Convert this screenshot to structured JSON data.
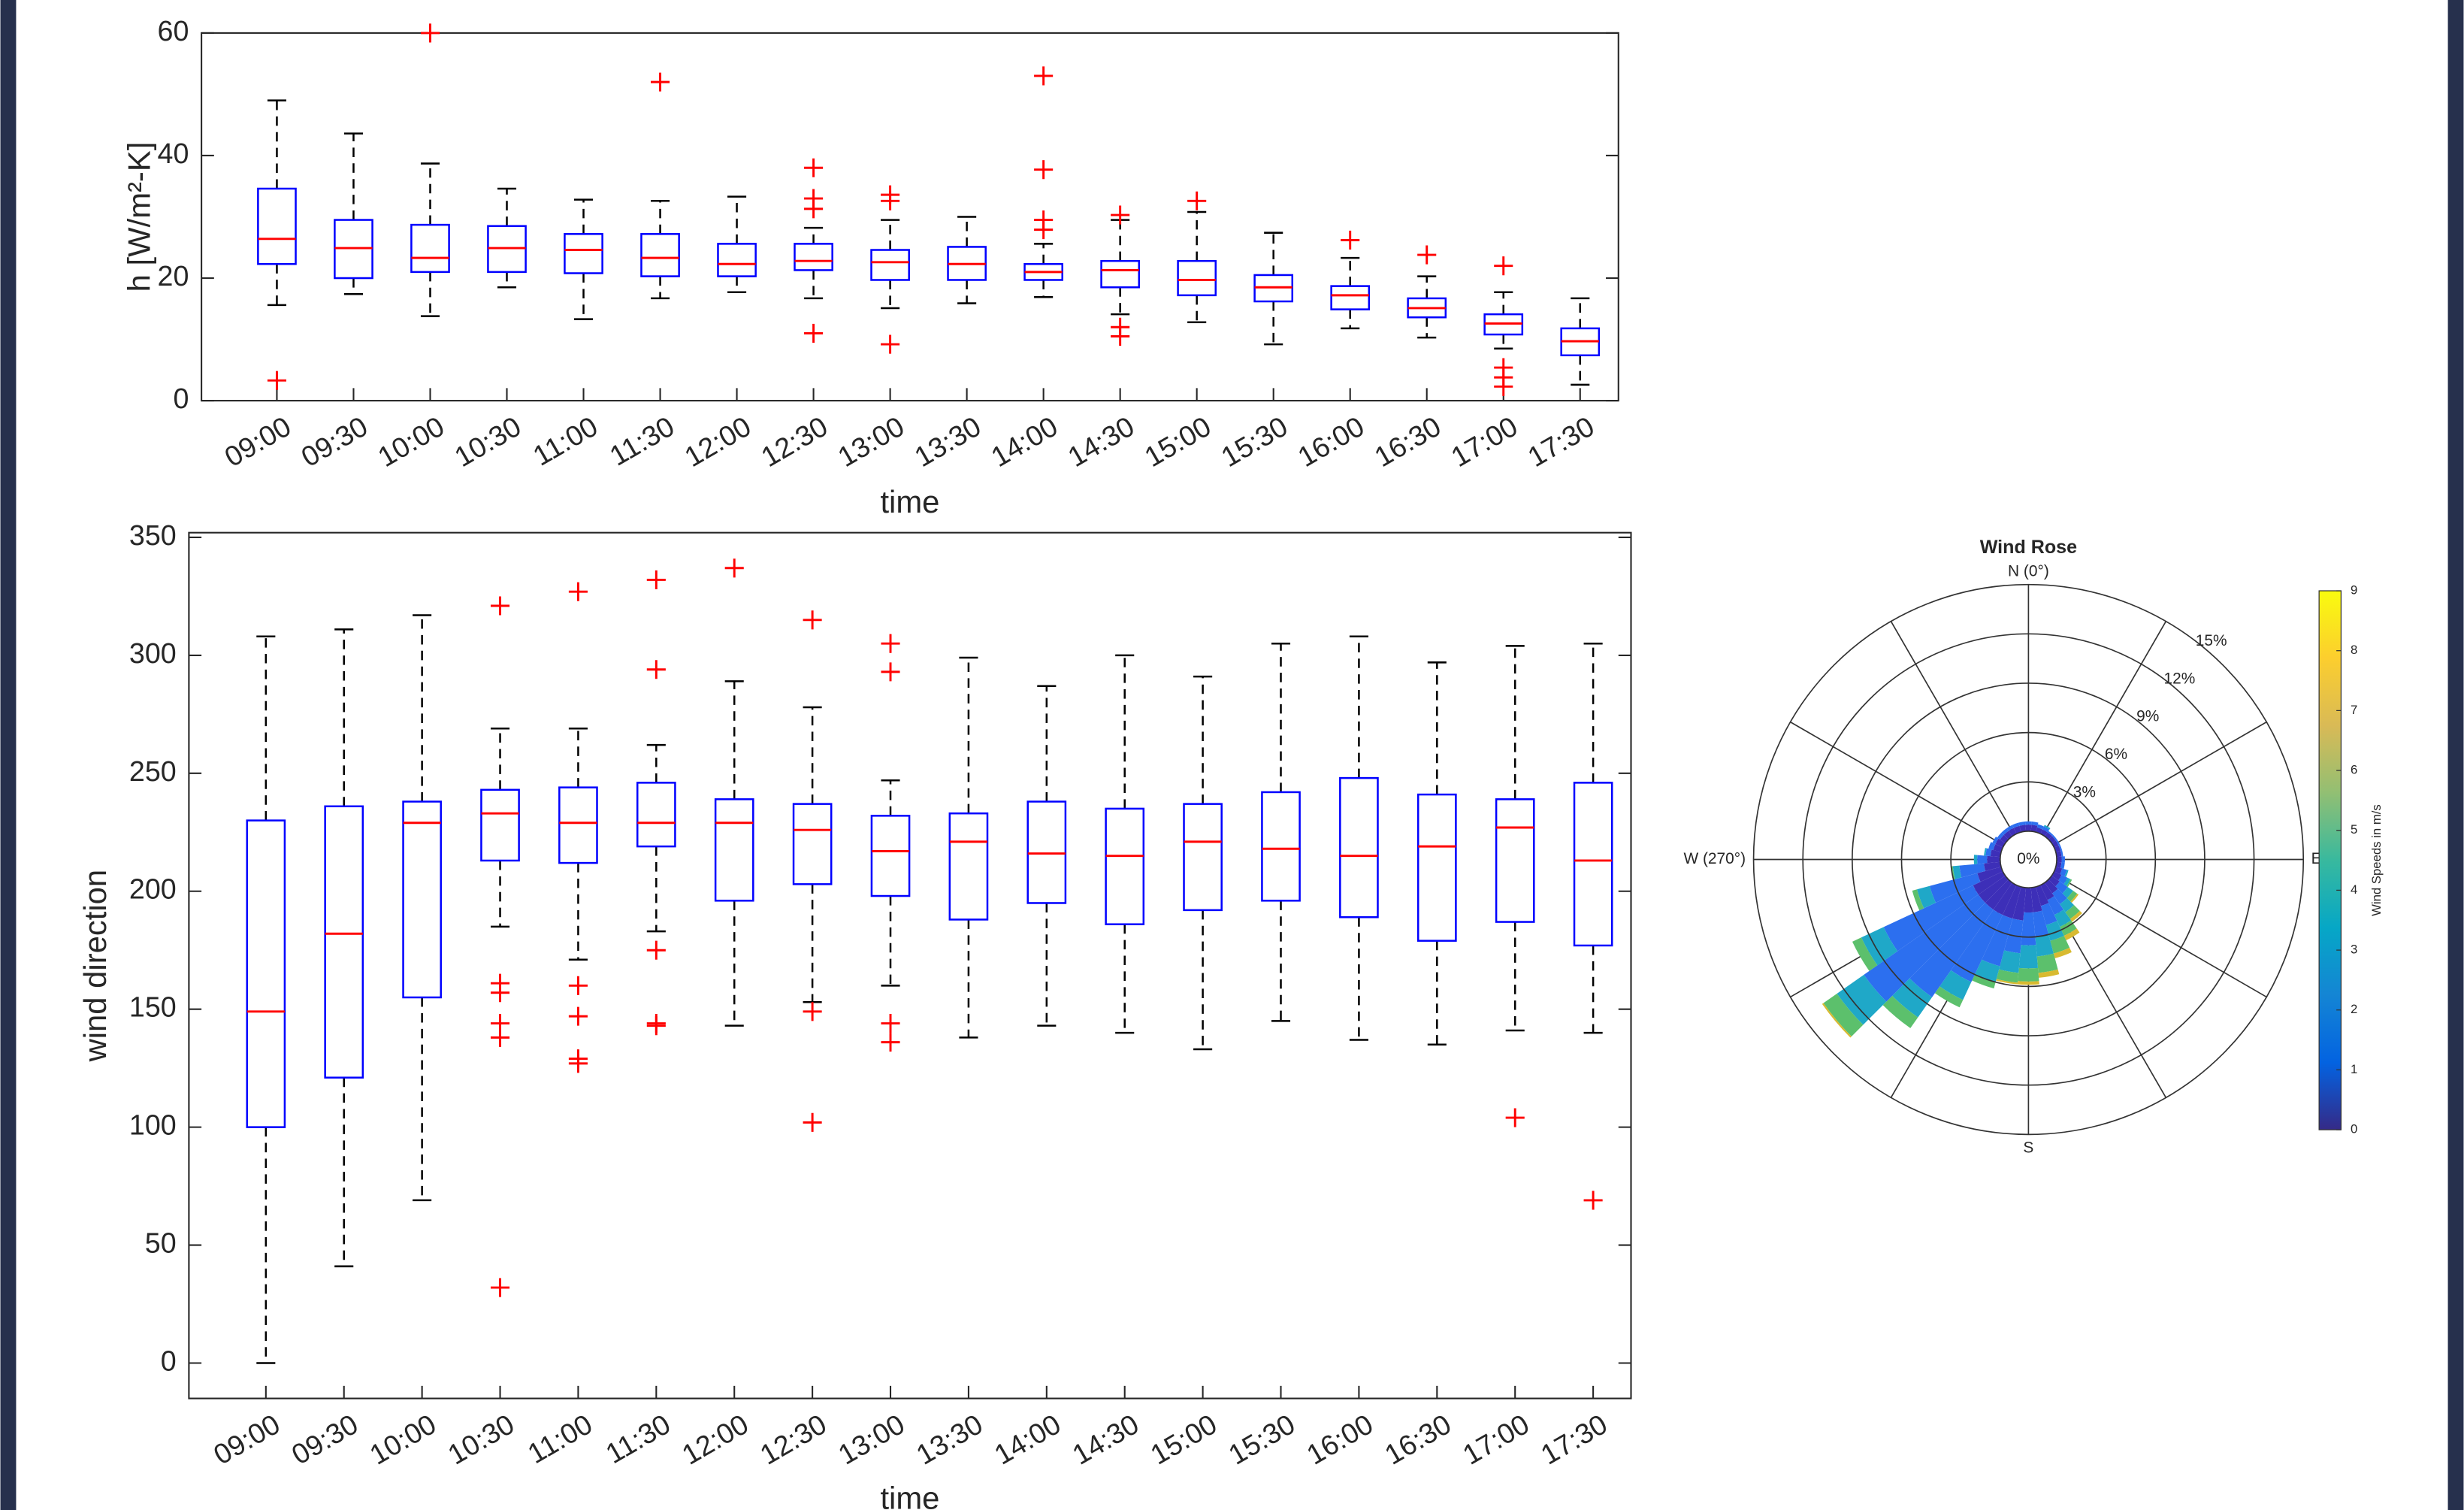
{
  "chart_data": [
    {
      "type": "box",
      "ylabel": "h [W/m²-K]",
      "xlabel": "time",
      "categories": [
        "09:00",
        "09:30",
        "10:00",
        "10:30",
        "11:00",
        "11:30",
        "12:00",
        "12:30",
        "13:00",
        "13:30",
        "14:00",
        "14:30",
        "15:00",
        "15:30",
        "16:00",
        "16:30",
        "17:00",
        "17:30"
      ],
      "ylim": [
        0,
        60
      ],
      "yticks": [
        0,
        20,
        40,
        60
      ],
      "box_color": "#0000ff",
      "median_color": "#ff0000",
      "whisker_color": "#000000",
      "outlier_color": "#ff0000",
      "boxes": [
        {
          "low": 15.6,
          "q1": 22.3,
          "median": 26.4,
          "q3": 34.6,
          "high": 49,
          "outliers": [
            3.3
          ]
        },
        {
          "low": 17.4,
          "q1": 20,
          "median": 24.9,
          "q3": 29.5,
          "high": 43.6,
          "outliers": []
        },
        {
          "low": 13.8,
          "q1": 21,
          "median": 23.3,
          "q3": 28.7,
          "high": 38.7,
          "outliers": [
            60
          ]
        },
        {
          "low": 18.5,
          "q1": 21,
          "median": 24.9,
          "q3": 28.5,
          "high": 34.6,
          "outliers": []
        },
        {
          "low": 13.3,
          "q1": 20.8,
          "median": 24.6,
          "q3": 27.2,
          "high": 32.8,
          "outliers": []
        },
        {
          "low": 16.7,
          "q1": 20.3,
          "median": 23.3,
          "q3": 27.2,
          "high": 32.6,
          "outliers": [
            52
          ]
        },
        {
          "low": 17.7,
          "q1": 20.3,
          "median": 22.3,
          "q3": 25.6,
          "high": 33.3,
          "outliers": []
        },
        {
          "low": 16.7,
          "q1": 21.3,
          "median": 22.8,
          "q3": 25.6,
          "high": 28.2,
          "outliers": [
            38,
            33,
            31.3,
            11
          ]
        },
        {
          "low": 15.1,
          "q1": 19.7,
          "median": 22.6,
          "q3": 24.6,
          "high": 29.5,
          "outliers": [
            33.6,
            32.6,
            9.2
          ]
        },
        {
          "low": 15.9,
          "q1": 19.7,
          "median": 22.3,
          "q3": 25.1,
          "high": 30,
          "outliers": []
        },
        {
          "low": 16.9,
          "q1": 19.7,
          "median": 21,
          "q3": 22.3,
          "high": 25.6,
          "outliers": [
            53,
            37.7,
            29.5,
            27.9
          ]
        },
        {
          "low": 14.1,
          "q1": 18.5,
          "median": 21.3,
          "q3": 22.8,
          "high": 29.5,
          "outliers": [
            30.3,
            12,
            10.5
          ]
        },
        {
          "low": 12.8,
          "q1": 17.2,
          "median": 19.7,
          "q3": 22.8,
          "high": 30.8,
          "outliers": [
            32.6
          ]
        },
        {
          "low": 9.2,
          "q1": 16.2,
          "median": 18.5,
          "q3": 20.5,
          "high": 27.4,
          "outliers": []
        },
        {
          "low": 11.8,
          "q1": 14.9,
          "median": 17.2,
          "q3": 18.7,
          "high": 23.3,
          "outliers": [
            26.2
          ]
        },
        {
          "low": 10.3,
          "q1": 13.6,
          "median": 15.1,
          "q3": 16.7,
          "high": 20.3,
          "outliers": [
            23.8
          ]
        },
        {
          "low": 8.5,
          "q1": 10.8,
          "median": 12.6,
          "q3": 14.1,
          "high": 17.7,
          "outliers": [
            22,
            5.4,
            3.8,
            2.3
          ]
        },
        {
          "low": 2.6,
          "q1": 7.4,
          "median": 9.7,
          "q3": 11.8,
          "high": 16.7,
          "outliers": []
        }
      ]
    },
    {
      "type": "box",
      "ylabel": "wind direction",
      "xlabel": "time",
      "categories": [
        "09:00",
        "09:30",
        "10:00",
        "10:30",
        "11:00",
        "11:30",
        "12:00",
        "12:30",
        "13:00",
        "13:30",
        "14:00",
        "14:30",
        "15:00",
        "15:30",
        "16:00",
        "16:30",
        "17:00",
        "17:30"
      ],
      "ylim": [
        -15,
        352
      ],
      "yticks": [
        0,
        50,
        100,
        150,
        200,
        250,
        300,
        350
      ],
      "box_color": "#0000ff",
      "median_color": "#ff0000",
      "whisker_color": "#000000",
      "outlier_color": "#ff0000",
      "boxes": [
        {
          "low": 0,
          "q1": 100,
          "median": 149,
          "q3": 230,
          "high": 308,
          "outliers": []
        },
        {
          "low": 41,
          "q1": 121,
          "median": 182,
          "q3": 236,
          "high": 311,
          "outliers": []
        },
        {
          "low": 69,
          "q1": 155,
          "median": 229,
          "q3": 238,
          "high": 317,
          "outliers": []
        },
        {
          "low": 185,
          "q1": 213,
          "median": 233,
          "q3": 243,
          "high": 269,
          "outliers": [
            321,
            161,
            157,
            144,
            138,
            32
          ]
        },
        {
          "low": 171,
          "q1": 212,
          "median": 229,
          "q3": 244,
          "high": 269,
          "outliers": [
            327,
            160,
            147,
            129,
            127
          ]
        },
        {
          "low": 183,
          "q1": 219,
          "median": 229,
          "q3": 246,
          "high": 262,
          "outliers": [
            332,
            294,
            175,
            144,
            143
          ]
        },
        {
          "low": 143,
          "q1": 196,
          "median": 229,
          "q3": 239,
          "high": 289,
          "outliers": [
            337
          ]
        },
        {
          "low": 153,
          "q1": 203,
          "median": 226,
          "q3": 237,
          "high": 278,
          "outliers": [
            315,
            149,
            102
          ]
        },
        {
          "low": 160,
          "q1": 198,
          "median": 217,
          "q3": 232,
          "high": 247,
          "outliers": [
            305,
            293,
            144,
            136
          ]
        },
        {
          "low": 138,
          "q1": 188,
          "median": 221,
          "q3": 233,
          "high": 299,
          "outliers": []
        },
        {
          "low": 143,
          "q1": 195,
          "median": 216,
          "q3": 238,
          "high": 287,
          "outliers": []
        },
        {
          "low": 140,
          "q1": 186,
          "median": 215,
          "q3": 235,
          "high": 300,
          "outliers": []
        },
        {
          "low": 133,
          "q1": 192,
          "median": 221,
          "q3": 237,
          "high": 291,
          "outliers": []
        },
        {
          "low": 145,
          "q1": 196,
          "median": 218,
          "q3": 242,
          "high": 305,
          "outliers": []
        },
        {
          "low": 137,
          "q1": 189,
          "median": 215,
          "q3": 248,
          "high": 308,
          "outliers": []
        },
        {
          "low": 135,
          "q1": 179,
          "median": 219,
          "q3": 241,
          "high": 297,
          "outliers": []
        },
        {
          "low": 141,
          "q1": 187,
          "median": 227,
          "q3": 239,
          "high": 304,
          "outliers": [
            104
          ]
        },
        {
          "low": 140,
          "q1": 177,
          "median": 213,
          "q3": 246,
          "high": 305,
          "outliers": [
            69
          ]
        }
      ]
    },
    {
      "type": "windrose",
      "title": "Wind Rose",
      "directions": [
        0,
        10,
        20,
        30,
        40,
        50,
        60,
        70,
        80,
        90,
        100,
        110,
        120,
        130,
        140,
        150,
        160,
        170,
        180,
        190,
        200,
        210,
        220,
        230,
        240,
        250,
        260,
        270,
        280,
        290,
        300,
        310,
        320,
        330,
        340,
        350
      ],
      "rlim": [
        0,
        15
      ],
      "rticks": [
        {
          "value": 0,
          "label": "0%"
        },
        {
          "value": 3,
          "label": "3%"
        },
        {
          "value": 6,
          "label": "6%"
        },
        {
          "value": 9,
          "label": "9%"
        },
        {
          "value": 12,
          "label": "12%"
        },
        {
          "value": 15,
          "label": "15%"
        }
      ],
      "direction_labels": [
        {
          "value": 0,
          "label": "N (0°)"
        },
        {
          "value": 90,
          "label": "E"
        },
        {
          "value": 180,
          "label": "S"
        },
        {
          "value": 270,
          "label": "W (270°)"
        }
      ],
      "series": [
        {
          "color": "#3d2fb8",
          "values": [
            0.4,
            0.4,
            0.3,
            0.3,
            0.3,
            0.3,
            0.3,
            0.3,
            0.3,
            0.3,
            0.3,
            0.4,
            0.5,
            0.6,
            0.8,
            1,
            1.2,
            1.5,
            1.5,
            2,
            2,
            2,
            2,
            2,
            2,
            1.5,
            1,
            0.8,
            0.6,
            0.5,
            0.5,
            0.4,
            0.4,
            0.4,
            0.4,
            0.4
          ]
        },
        {
          "color": "#2c6fef",
          "values": [
            0.2,
            0.2,
            0.2,
            0.2,
            0.1,
            0.1,
            0.1,
            0.1,
            0.1,
            0.2,
            0.2,
            0.3,
            0.4,
            0.6,
            0.8,
            1,
            1.2,
            1.5,
            2,
            2,
            3,
            4.5,
            6.5,
            8.5,
            6,
            3,
            1.5,
            0.6,
            0.3,
            0.3,
            0.2,
            0.2,
            0.2,
            0.2,
            0.2,
            0.2
          ]
        },
        {
          "color": "#1fa8c8",
          "values": [
            0,
            0,
            0,
            0.1,
            0,
            0,
            0,
            0,
            0,
            0,
            0,
            0.1,
            0.2,
            0.4,
            0.6,
            0.8,
            1,
            1.2,
            1.4,
            1.2,
            1,
            1.2,
            1.5,
            2,
            1.5,
            0.8,
            0.4,
            0.2,
            0.1,
            0,
            0,
            0,
            0,
            0,
            0,
            0
          ]
        },
        {
          "color": "#5cc06c",
          "values": [
            0,
            0,
            0,
            0,
            0,
            0,
            0,
            0,
            0,
            0,
            0,
            0,
            0.1,
            0.3,
            0.5,
            0.6,
            0.8,
            1,
            0.8,
            0.6,
            0.4,
            0.5,
            0.8,
            1,
            0.6,
            0.3,
            0.1,
            0,
            0,
            0,
            0,
            0,
            0,
            0,
            0,
            0
          ]
        },
        {
          "color": "#d8ba30",
          "values": [
            0,
            0,
            0,
            0,
            0,
            0,
            0,
            0,
            0,
            0,
            0,
            0,
            0,
            0.1,
            0.2,
            0.3,
            0.3,
            0.3,
            0.2,
            0.1,
            0,
            0,
            0,
            0.1,
            0,
            0,
            0,
            0,
            0,
            0,
            0,
            0,
            0,
            0,
            0,
            0
          ]
        }
      ],
      "colorbar": {
        "label": "Wind Speeds in m/s",
        "clim": [
          0,
          9
        ],
        "ticks": [
          0,
          1,
          2,
          3,
          4,
          5,
          6,
          7,
          8,
          9
        ],
        "colors": [
          "#352a87",
          "#0363e1",
          "#1485d4",
          "#06a7c6",
          "#38b99e",
          "#92bf73",
          "#d9ba56",
          "#fcce2e",
          "#f9fb0e"
        ]
      }
    }
  ]
}
